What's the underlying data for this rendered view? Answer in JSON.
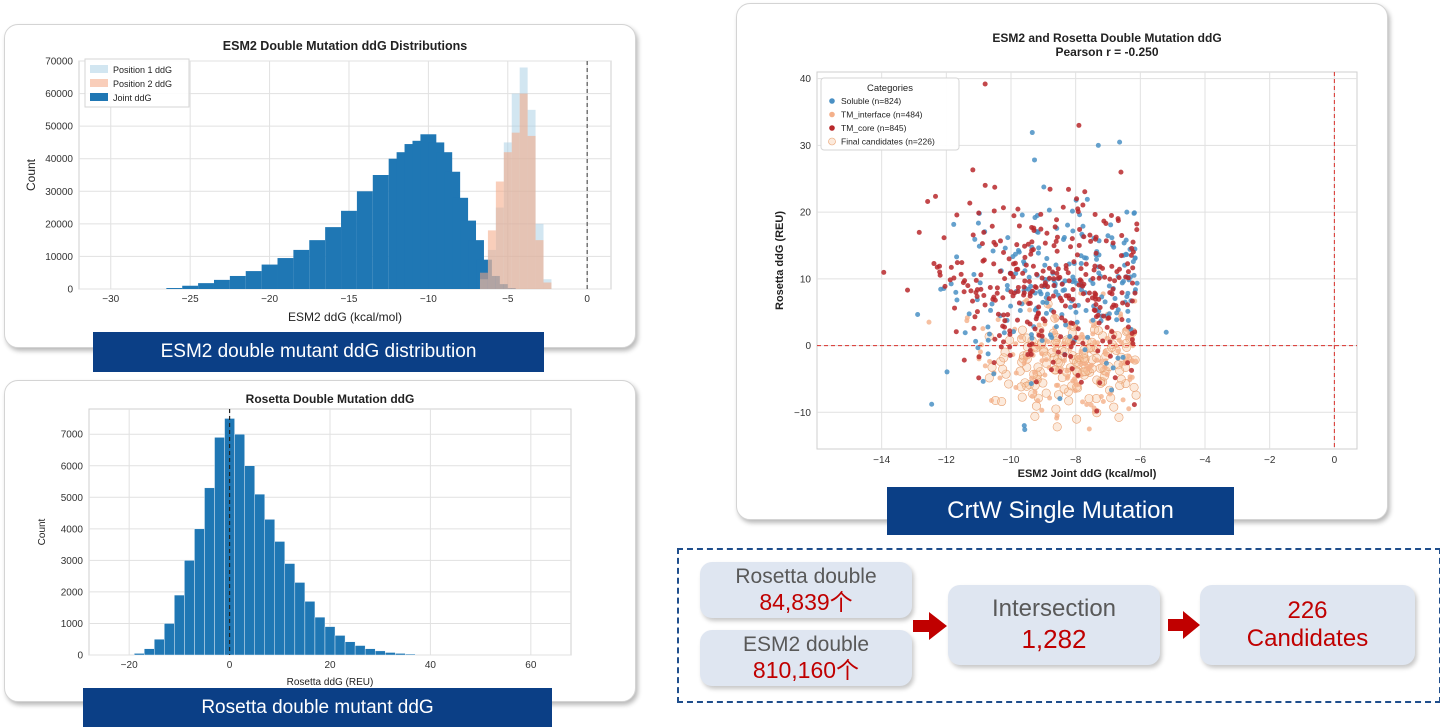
{
  "chart_data": [
    {
      "type": "bar",
      "title": "ESM2 Double Mutation ddG Distributions",
      "xlabel": "ESM2 ddG (kcal/mol)",
      "ylabel": "Count",
      "xlim": [
        -32,
        1.5
      ],
      "ylim": [
        0,
        70000
      ],
      "xticks": [
        "−30",
        "−25",
        "−20",
        "−15",
        "−10",
        "−5",
        "0"
      ],
      "yticks": [
        "0",
        "10000",
        "20000",
        "30000",
        "40000",
        "50000",
        "60000",
        "70000"
      ],
      "legend": [
        "Position 1 ddG",
        "Position 2 ddG",
        "Joint ddG"
      ],
      "legend_position": "top-left",
      "grid": true,
      "series": [
        {
          "name": "Joint ddG",
          "color": "#1f77b4",
          "x": [
            -26.0,
            -25.0,
            -24.0,
            -23.0,
            -22.0,
            -21.0,
            -20.0,
            -19.0,
            -18.0,
            -17.0,
            -16.0,
            -15.0,
            -14.0,
            -13.0,
            -12.0,
            -11.5,
            -11.0,
            -10.5,
            -10.0,
            -9.5,
            -9.0,
            -8.5,
            -8.0,
            -7.5,
            -7.0,
            -6.5,
            -6.0,
            -5.5,
            -5.0
          ],
          "values": [
            300,
            1000,
            1800,
            2800,
            4000,
            5500,
            7500,
            9500,
            12000,
            15000,
            19000,
            24000,
            30000,
            35000,
            40000,
            42000,
            44500,
            45500,
            47500,
            45000,
            42000,
            36000,
            28000,
            21000,
            15000,
            9000,
            4000,
            1500,
            300
          ]
        },
        {
          "name": "Position 1 ddG",
          "color": "#a6cee3",
          "x": [
            -6.5,
            -6.0,
            -5.5,
            -5.0,
            -4.5,
            -4.0,
            -3.5,
            -3.0,
            -2.5
          ],
          "values": [
            3000,
            12000,
            25000,
            45000,
            60000,
            68000,
            55000,
            20000,
            3000
          ]
        },
        {
          "name": "Position 2 ddG",
          "color": "#f4a582",
          "x": [
            -6.5,
            -6.0,
            -5.5,
            -5.0,
            -4.5,
            -4.0,
            -3.5,
            -3.0,
            -2.5
          ],
          "values": [
            5000,
            18000,
            33000,
            42000,
            48000,
            60000,
            47000,
            15000,
            2000
          ]
        }
      ],
      "annotations": [
        "vertical dashed line at 0"
      ]
    },
    {
      "type": "bar",
      "title": "Rosetta Double Mutation ddG",
      "xlabel": "Rosetta ddG (REU)",
      "ylabel": "Count",
      "xlim": [
        -28,
        68
      ],
      "ylim": [
        0,
        7800
      ],
      "xticks": [
        "−20",
        "0",
        "20",
        "40",
        "60"
      ],
      "yticks": [
        "0",
        "1000",
        "2000",
        "3000",
        "4000",
        "5000",
        "6000",
        "7000"
      ],
      "grid": true,
      "series": [
        {
          "name": "",
          "color": "#1f77b4",
          "x": [
            -18,
            -16,
            -14,
            -12,
            -10,
            -8,
            -6,
            -4,
            -2,
            0,
            2,
            4,
            6,
            8,
            10,
            12,
            14,
            16,
            18,
            20,
            22,
            24,
            26,
            28,
            30,
            32,
            34,
            36
          ],
          "values": [
            50,
            200,
            500,
            1000,
            1900,
            3000,
            4000,
            5300,
            6900,
            7500,
            7000,
            6000,
            5100,
            4300,
            3600,
            2900,
            2300,
            1700,
            1200,
            900,
            620,
            420,
            300,
            200,
            130,
            80,
            50,
            30
          ]
        }
      ],
      "annotations": [
        "vertical dashed line at 0"
      ]
    },
    {
      "type": "scatter",
      "title": "ESM2 and Rosetta Double Mutation ddG",
      "subtitle": "Pearson r = -0.250",
      "xlabel": "ESM2 Joint ddG (kcal/mol)",
      "ylabel": "Rosetta ddG (REU)",
      "xlim": [
        -16,
        0.7
      ],
      "ylim": [
        -15.5,
        41
      ],
      "xticks": [
        "−14",
        "−12",
        "−10",
        "−8",
        "−6",
        "−4",
        "−2",
        "0"
      ],
      "yticks": [
        "−10",
        "0",
        "10",
        "20",
        "30",
        "40"
      ],
      "legend_title": "Categories",
      "legend_position": "top-left",
      "grid": true,
      "series": [
        {
          "name": "Soluble (n=824)",
          "color": "#4a90c4",
          "count": 824
        },
        {
          "name": "TM_interface (n=484)",
          "color": "#f4b08a",
          "count": 484
        },
        {
          "name": "TM_core (n=845)",
          "color": "#b8282b",
          "count": 845
        },
        {
          "name": "Final candidates (n=226)",
          "color": "#f6c49a",
          "count": 226
        }
      ],
      "annotations": [
        "horizontal dashed red line at 0",
        "vertical dashed red line at 0"
      ]
    }
  ],
  "banners": {
    "esm2": "ESM2 double mutant ddG distribution",
    "rosetta": "Rosetta double mutant ddG",
    "crtw": "CrtW Single Mutation"
  },
  "flow": {
    "rosetta_label": "Rosetta double",
    "rosetta_count": "84,839个",
    "esm2_label": "ESM2 double",
    "esm2_count": "810,160个",
    "intersection_label": "Intersection",
    "intersection_count": "1,282",
    "candidates_count": "226",
    "candidates_label": "Candidates"
  },
  "colors": {
    "banner": "#0b3f86",
    "accent_red": "#c00000",
    "pill": "#dfe6f1"
  }
}
